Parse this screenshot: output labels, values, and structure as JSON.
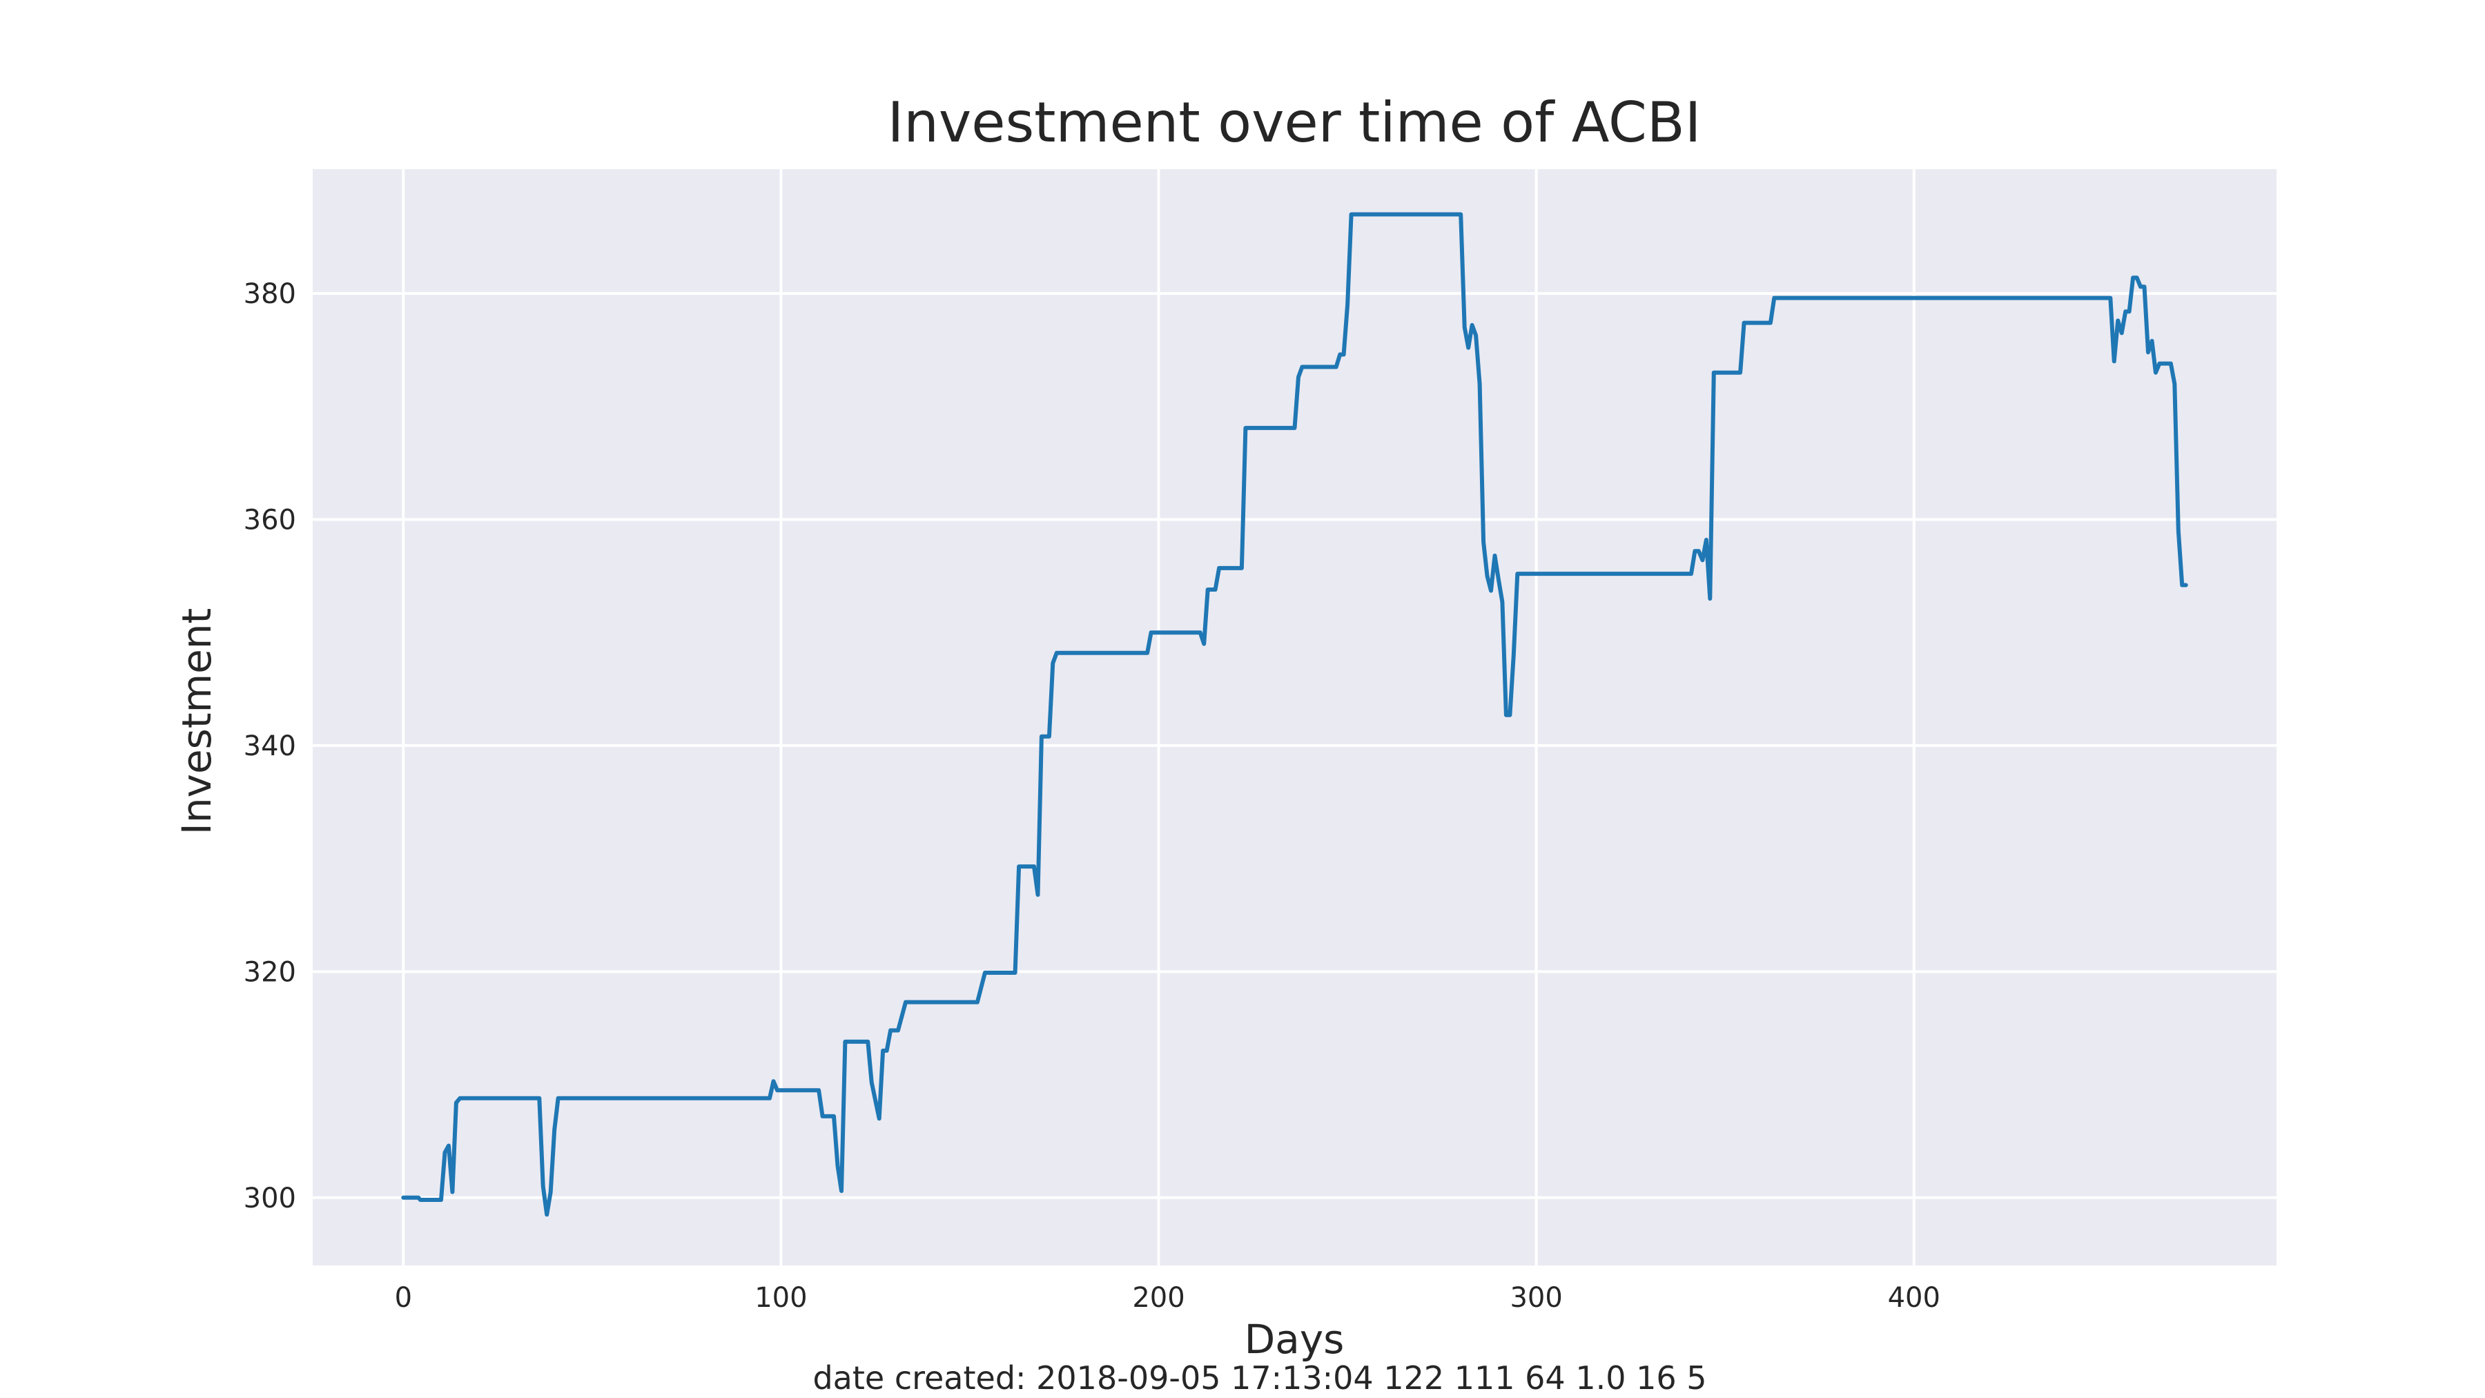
{
  "chart_data": {
    "type": "line",
    "title": "Investment over time of ACBI",
    "xlabel": "Days",
    "ylabel": "Investment",
    "footer": "date created: 2018-09-05 17:13:04 122 111 64 1.0 16 5",
    "xlim": [
      -24,
      496
    ],
    "ylim": [
      294,
      391
    ],
    "xticks": [
      0,
      100,
      200,
      300,
      400
    ],
    "yticks": [
      300,
      320,
      340,
      360,
      380
    ],
    "grid": true,
    "legend": "none",
    "colors": {
      "line": "#1f77b4",
      "plot_background": "#eaeaf2",
      "grid": "#ffffff",
      "text": "#262626"
    },
    "series": [
      {
        "x": [
          0,
          4,
          4.5,
          10,
          11,
          12,
          13,
          14,
          15,
          16,
          36,
          37,
          38,
          39,
          40,
          41,
          42,
          97,
          98,
          99,
          110,
          111,
          114,
          115,
          116,
          117,
          123,
          124,
          126,
          127,
          128,
          129,
          131,
          133,
          134,
          152,
          154,
          162,
          163,
          167,
          168,
          169,
          171,
          172,
          173,
          197,
          198,
          211,
          212,
          213,
          215,
          216,
          222,
          223,
          236,
          237,
          238,
          247,
          248,
          249,
          250,
          251,
          280,
          281,
          282,
          283,
          284,
          285,
          286,
          287,
          288,
          289,
          290,
          291,
          292,
          293,
          294,
          295,
          341,
          342,
          343,
          344,
          345,
          346,
          347,
          354,
          355,
          362,
          363,
          452,
          453,
          454,
          455,
          456,
          457,
          458,
          459,
          460,
          461,
          462,
          463,
          464,
          465,
          468,
          469,
          470,
          471,
          472
        ],
        "y": [
          300,
          300,
          299.8,
          299.8,
          304,
          304.6,
          300.5,
          308.4,
          308.8,
          308.8,
          308.8,
          301,
          298.5,
          300.5,
          306,
          308.8,
          308.8,
          308.8,
          310.3,
          309.5,
          309.5,
          307.2,
          307.2,
          302.8,
          300.6,
          313.8,
          313.8,
          310.2,
          307,
          313,
          313,
          314.8,
          314.8,
          317.3,
          317.3,
          317.3,
          319.9,
          319.9,
          329.3,
          329.3,
          326.8,
          340.8,
          340.8,
          347.3,
          348.2,
          348.2,
          350,
          350,
          349,
          353.8,
          353.8,
          355.7,
          355.7,
          368.1,
          368.1,
          372.6,
          373.5,
          373.5,
          374.6,
          374.6,
          379,
          387,
          387,
          377,
          375.2,
          377.2,
          376.3,
          372,
          358,
          355,
          353.7,
          356.8,
          354.7,
          352.7,
          342.7,
          342.7,
          348,
          355.2,
          355.2,
          357.2,
          357.2,
          356.4,
          358.2,
          353,
          373,
          373,
          377.4,
          377.4,
          379.6,
          379.6,
          374,
          377.6,
          376.5,
          378.4,
          378.4,
          381.4,
          381.4,
          380.6,
          380.6,
          374.8,
          375.8,
          373,
          373.8,
          373.8,
          372,
          359,
          354.2,
          354.2
        ]
      }
    ]
  }
}
